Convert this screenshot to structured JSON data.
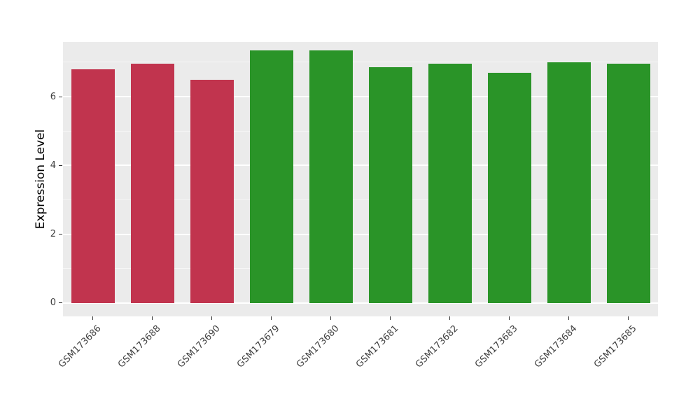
{
  "chart_data": {
    "type": "bar",
    "title": "",
    "xlabel": "",
    "ylabel": "Expression Level",
    "categories": [
      "GSM173686",
      "GSM173688",
      "GSM173690",
      "GSM173679",
      "GSM173680",
      "GSM173681",
      "GSM173682",
      "GSM173683",
      "GSM173684",
      "GSM173685"
    ],
    "values": [
      6.8,
      6.95,
      6.5,
      7.35,
      7.35,
      6.85,
      6.95,
      6.7,
      7.0,
      6.95
    ],
    "bar_color_groups": [
      "red",
      "red",
      "red",
      "green",
      "green",
      "green",
      "green",
      "green",
      "green",
      "green"
    ],
    "colors": {
      "red": "#C1344E",
      "green": "#2A9428"
    },
    "ylim": [
      -0.39,
      7.59
    ],
    "yticks": [
      0,
      2,
      4,
      6
    ],
    "minor_yticks": [
      1,
      3,
      5,
      7
    ],
    "grid": true,
    "legend_position": "none",
    "panel_background": "#EBEBEB",
    "gridline_color": "#FFFFFF"
  }
}
